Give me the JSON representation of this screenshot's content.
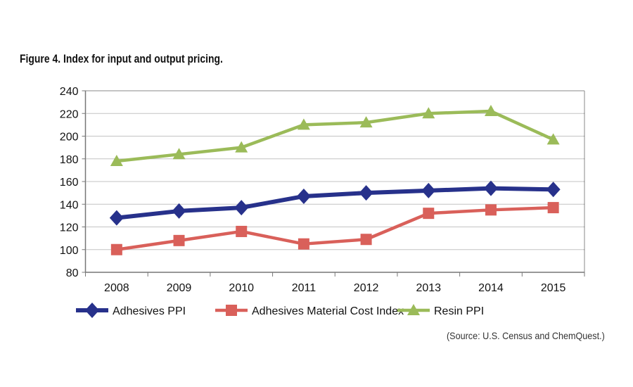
{
  "title": "Figure 4. Index for input and output pricing.",
  "source": "(Source: U.S. Census and ChemQuest.)",
  "chart_data": {
    "type": "line",
    "categories": [
      "2008",
      "2009",
      "2010",
      "2011",
      "2012",
      "2013",
      "2014",
      "2015"
    ],
    "ylim": [
      80,
      240
    ],
    "yticks": [
      80,
      100,
      120,
      140,
      160,
      180,
      200,
      220,
      240
    ],
    "grid": true,
    "legend": "bottom",
    "series": [
      {
        "name": "Adhesives PPI",
        "color": "#27318b",
        "marker": "diamond",
        "values": [
          128,
          134,
          137,
          147,
          150,
          152,
          154,
          153
        ]
      },
      {
        "name": "Adhesives Material Cost Index",
        "color": "#d9605a",
        "marker": "square",
        "values": [
          100,
          108,
          116,
          105,
          109,
          132,
          135,
          137
        ]
      },
      {
        "name": "Resin PPI",
        "color": "#9bbb59",
        "marker": "triangle",
        "values": [
          178,
          184,
          190,
          210,
          212,
          220,
          222,
          197
        ]
      }
    ]
  }
}
